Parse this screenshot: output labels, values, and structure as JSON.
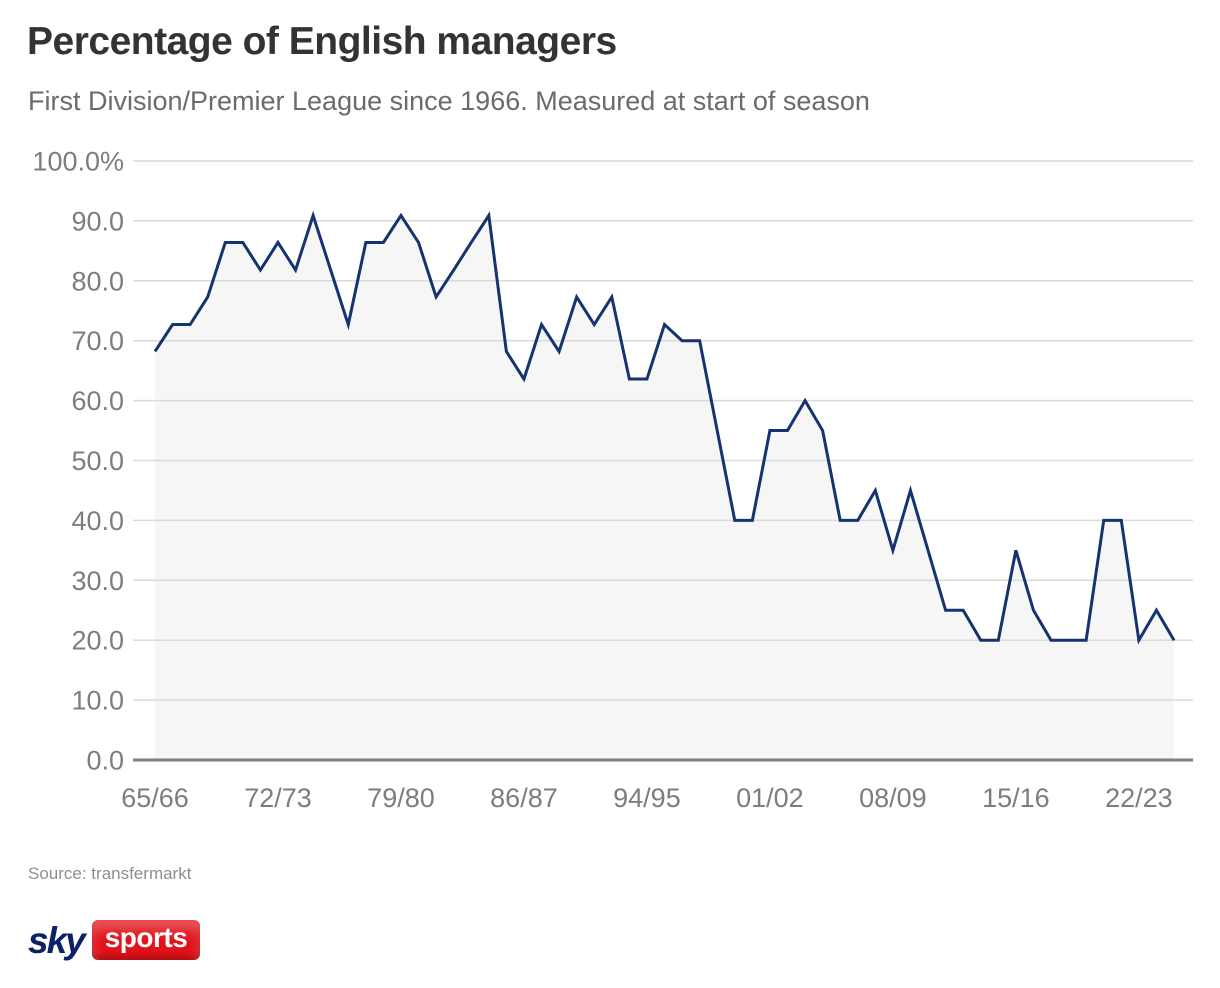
{
  "chart_data": {
    "type": "line",
    "title": "Percentage of English managers",
    "subtitle": "First Division/Premier League since 1966. Measured at start of season",
    "xlabel": "",
    "ylabel": "",
    "ylim": [
      0,
      100
    ],
    "grid": "horizontal",
    "legend": "none",
    "y_tick_labels": [
      "100.0%",
      "90.0",
      "80.0",
      "70.0",
      "60.0",
      "50.0",
      "40.0",
      "30.0",
      "20.0",
      "10.0",
      "0.0"
    ],
    "y_tick_values": [
      100,
      90,
      80,
      70,
      60,
      50,
      40,
      30,
      20,
      10,
      0
    ],
    "x_tick_labels": [
      "65/66",
      "72/73",
      "79/80",
      "86/87",
      "94/95",
      "01/02",
      "08/09",
      "15/16",
      "22/23"
    ],
    "x_tick_interval": 7,
    "values": [
      68.2,
      72.7,
      72.7,
      77.3,
      86.4,
      86.4,
      81.8,
      86.4,
      81.8,
      90.9,
      81.8,
      72.7,
      86.4,
      86.4,
      90.9,
      86.4,
      77.3,
      81.8,
      86.4,
      90.9,
      68.2,
      63.6,
      72.7,
      68.2,
      77.3,
      72.7,
      77.3,
      63.6,
      63.6,
      72.7,
      70.0,
      70.0,
      55.0,
      40.0,
      40.0,
      55.0,
      55.0,
      60.0,
      55.0,
      40.0,
      40.0,
      45.0,
      35.0,
      45.0,
      35.0,
      25.0,
      25.0,
      20.0,
      20.0,
      35.0,
      25.0,
      20.0,
      20.0,
      20.0,
      40.0,
      40.0,
      20.0,
      25.0,
      20.0
    ],
    "colors": {
      "line": "#15336e",
      "area_fill": "#f6f6f6",
      "gridline": "#dadada",
      "axis_line": "#7f7f7f",
      "tick_text": "#7d7d7d"
    }
  },
  "footer": {
    "source": "Source: transfermarkt",
    "logo": {
      "sky": "sky",
      "sports": "sports",
      "sky_navy": "#0b2268",
      "sports_red": "#e1121a"
    }
  }
}
